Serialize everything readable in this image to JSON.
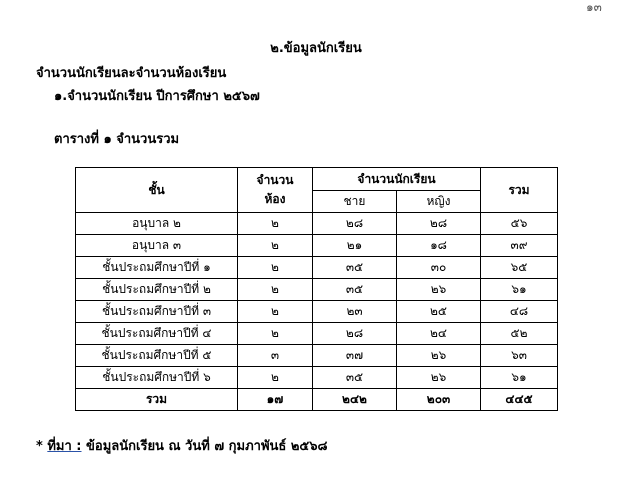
{
  "page_number": "๑๓",
  "title": "๒.ข้อมูลนักเรียน",
  "subtitle": "จำนวนนักเรียนละจำนวนห้องเรียน",
  "item1": "๑.จำนวนนักเรียน  ปีการศึกษา ๒๕๖๗",
  "table_caption": "ตารางที่ ๑  จำนวนรวม",
  "table": {
    "headers": {
      "level": "ชั้น",
      "rooms_line1": "จำนวน",
      "rooms_line2": "ห้อง",
      "students": "จำนวนนักเรียน",
      "male": "ชาย",
      "female": "หญิง",
      "total": "รวม"
    },
    "rows": [
      [
        "อนุบาล ๒",
        "๒",
        "๒๘",
        "๒๘",
        "๕๖"
      ],
      [
        "อนุบาล ๓",
        "๒",
        "๒๑",
        "๑๘",
        "๓๙"
      ],
      [
        "ชั้นประถมศึกษาปีที่ ๑",
        "๒",
        "๓๕",
        "๓๐",
        "๖๕"
      ],
      [
        "ชั้นประถมศึกษาปีที่ ๒",
        "๒",
        "๓๕",
        "๒๖",
        "๖๑"
      ],
      [
        "ชั้นประถมศึกษาปีที่ ๓",
        "๒",
        "๒๓",
        "๒๕",
        "๔๘"
      ],
      [
        "ชั้นประถมศึกษาปีที่ ๔",
        "๒",
        "๒๘",
        "๒๔",
        "๕๒"
      ],
      [
        "ชั้นประถมศึกษาปีที่ ๕",
        "๓",
        "๓๗",
        "๒๖",
        "๖๓"
      ],
      [
        "ชั้นประถมศึกษาปีที่ ๖",
        "๒",
        "๓๕",
        "๒๖",
        "๖๑"
      ]
    ],
    "total_row": [
      "รวม",
      "๑๗",
      "๒๔๒",
      "๒๐๓",
      "๔๔๕"
    ]
  },
  "source": {
    "prefix": "* ",
    "label": "ที่มา :",
    "text": " ข้อมูลนักเรียน ณ วันที่ ๗ กุมภาพันธ์ ๒๕๖๘"
  }
}
